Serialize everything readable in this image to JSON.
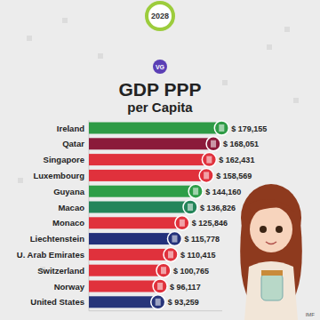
{
  "chart_data": {
    "type": "bar",
    "orientation": "horizontal",
    "title": "GDP PPP",
    "subtitle": "per Capita",
    "annotations": [
      "2028",
      "VG",
      "IMF"
    ],
    "categories": [
      "Ireland",
      "Qatar",
      "Singapore",
      "Luxembourg",
      "Guyana",
      "Macao",
      "Monaco",
      "Liechtenstein",
      "U. Arab Emirates",
      "Switzerland",
      "Norway",
      "United States"
    ],
    "values": [
      179155,
      168051,
      162431,
      158569,
      144160,
      136826,
      125846,
      115778,
      110415,
      100765,
      96117,
      93259
    ],
    "value_labels": [
      "$ 179,155",
      "$ 168,051",
      "$ 162,431",
      "$ 158,569",
      "$ 144,160",
      "$ 136,826",
      "$ 125,846",
      "$ 115,778",
      "$ 110,415",
      "$ 100,765",
      "$ 96,117",
      "$ 93,259"
    ],
    "colors": [
      "#2e9b46",
      "#8b1a3a",
      "#e0313c",
      "#e0313c",
      "#2e9e48",
      "#24855a",
      "#e0313c",
      "#23307a",
      "#e0313c",
      "#e0313c",
      "#e0313c",
      "#27357a"
    ],
    "xlim": [
      0,
      180000
    ],
    "data_labels": true,
    "tick_labels": false,
    "grid": false
  }
}
